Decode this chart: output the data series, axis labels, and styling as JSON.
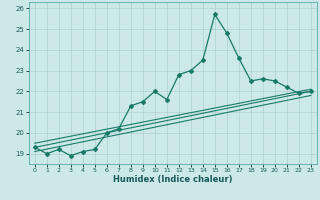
{
  "xlabel": "Humidex (Indice chaleur)",
  "bg_color": "#cce8e8",
  "line_color": "#1a7a6a",
  "grid_color": "#b0d0d0",
  "xlim": [
    -0.5,
    23.5
  ],
  "ylim": [
    18.5,
    26.3
  ],
  "yticks": [
    19,
    20,
    21,
    22,
    23,
    24,
    25,
    26
  ],
  "xticks": [
    0,
    1,
    2,
    3,
    4,
    5,
    6,
    7,
    8,
    9,
    10,
    11,
    12,
    13,
    14,
    15,
    16,
    17,
    18,
    19,
    20,
    21,
    22,
    23
  ],
  "main_x": [
    0,
    1,
    2,
    3,
    4,
    5,
    6,
    7,
    8,
    9,
    10,
    11,
    12,
    13,
    14,
    15,
    16,
    17,
    18,
    19,
    20,
    21,
    22,
    23
  ],
  "main_y": [
    19.3,
    19.0,
    19.2,
    18.9,
    19.1,
    19.2,
    20.0,
    20.2,
    21.3,
    21.5,
    22.0,
    21.6,
    22.8,
    23.0,
    23.5,
    25.7,
    24.8,
    23.6,
    22.5,
    22.6,
    22.5,
    22.2,
    21.9,
    22.0
  ],
  "trend1_x": [
    0,
    23
  ],
  "trend1_y": [
    19.1,
    21.8
  ],
  "trend2_x": [
    0,
    23
  ],
  "trend2_y": [
    19.3,
    22.0
  ],
  "trend3_x": [
    0,
    23
  ],
  "trend3_y": [
    19.5,
    22.1
  ]
}
